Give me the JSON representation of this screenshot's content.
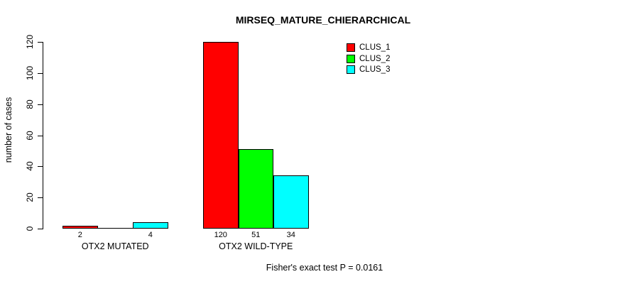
{
  "title": "MIRSEQ_MATURE_CHIERARCHICAL",
  "footer": "Fisher's exact test P = 0.0161",
  "y_axis": {
    "label": "number of cases",
    "ticks": [
      0,
      20,
      40,
      60,
      80,
      100,
      120
    ]
  },
  "colors": {
    "background": "#ffffff",
    "text": "#000000",
    "bar_border": "#000000",
    "clus_1": "#ff0000",
    "clus_2": "#00ff00",
    "clus_3": "#00ffff"
  },
  "chart_data": {
    "type": "bar",
    "title": "MIRSEQ_MATURE_CHIERARCHICAL",
    "xlabel": "",
    "ylabel": "number of cases",
    "categories": [
      "OTX2 MUTATED",
      "OTX2 WILD-TYPE"
    ],
    "series": [
      {
        "name": "CLUS_1",
        "color": "#ff0000",
        "values": [
          2,
          120
        ]
      },
      {
        "name": "CLUS_2",
        "color": "#00ff00",
        "values": [
          0,
          51
        ]
      },
      {
        "name": "CLUS_3",
        "color": "#00ffff",
        "values": [
          4,
          34
        ]
      }
    ],
    "bar_value_labels": [
      [
        "2",
        null,
        "4"
      ],
      [
        "120",
        "51",
        "34"
      ]
    ],
    "ylim": [
      0,
      120
    ],
    "yticks": [
      0,
      20,
      40,
      60,
      80,
      100,
      120
    ],
    "grid": false,
    "legend_position": "topright",
    "legend_entries": [
      "CLUS_1",
      "CLUS_2",
      "CLUS_3"
    ],
    "annotation": "Fisher's exact test P = 0.0161"
  }
}
